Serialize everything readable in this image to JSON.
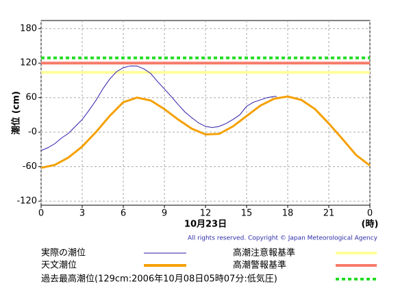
{
  "chart_data": {
    "type": "line",
    "y_label": "潮位 (cm)",
    "x_label": "10月23日",
    "x_unit": "(時)",
    "copyright": "All rights reserved. Copyright © Japan Meteorological Agency",
    "xlim": [
      0,
      24
    ],
    "xticks": [
      0,
      3,
      6,
      9,
      12,
      15,
      18,
      21,
      {
        "value": 24,
        "label": "0"
      }
    ],
    "ylim": [
      -127,
      194
    ],
    "yticks": [
      -120,
      -60,
      {
        "value": 0,
        "label": "-0"
      },
      60,
      120,
      180
    ],
    "grid": true,
    "series": [
      {
        "name": "実際の潮位",
        "color": "#2a1aa8",
        "width": 1,
        "x": [
          0,
          0.5,
          1,
          1.5,
          2,
          2.5,
          3,
          3.5,
          4,
          4.5,
          5,
          5.5,
          6,
          6.5,
          7,
          7.5,
          8,
          8.5,
          9,
          9.5,
          10,
          10.5,
          11,
          11.5,
          12,
          12.5,
          13,
          13.5,
          14,
          14.5,
          15,
          15.5,
          16,
          16.5,
          17,
          17.2
        ],
        "values": [
          -32,
          -27,
          -20,
          -10,
          -2,
          10,
          22,
          38,
          55,
          75,
          92,
          105,
          112,
          115,
          115,
          110,
          102,
          88,
          75,
          62,
          48,
          35,
          25,
          16,
          10,
          8,
          10,
          15,
          22,
          30,
          45,
          52,
          56,
          60,
          62,
          62
        ]
      },
      {
        "name": "天文潮位",
        "color": "#f5a000",
        "width": 3,
        "x": [
          0,
          1,
          2,
          3,
          4,
          5,
          6,
          7,
          8,
          9,
          10,
          11,
          12,
          13,
          14,
          15,
          16,
          17,
          18,
          19,
          20,
          21,
          22,
          23,
          24
        ],
        "values": [
          -62,
          -57,
          -44,
          -25,
          0,
          28,
          52,
          60,
          55,
          40,
          22,
          6,
          -4,
          -3,
          10,
          28,
          46,
          58,
          62,
          56,
          40,
          15,
          -12,
          -40,
          -58
        ]
      }
    ],
    "reference_lines": [
      {
        "name": "高潮注意報基準",
        "value": 104,
        "color": "#ffff99",
        "style": "solid"
      },
      {
        "name": "高潮警報基準",
        "value": 120,
        "color": "#f77a6a",
        "style": "solid"
      },
      {
        "name": "過去最高潮位(129cm:2006年10月08日05時07分:低気圧)",
        "value": 129,
        "color": "#22dd22",
        "style": "dotted"
      }
    ]
  }
}
